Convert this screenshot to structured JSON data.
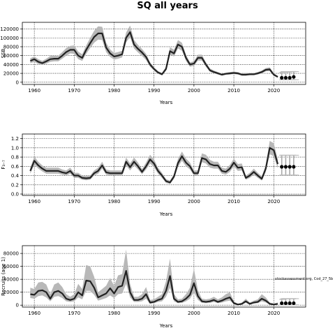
{
  "figure": {
    "title": "SQ all years",
    "credit": "stockassessment.org, Cod_27_5b"
  },
  "colors": {
    "line": "#222222",
    "band": "#b8b8b8",
    "proj_band": "#bcbcbc",
    "grid": "#000000"
  },
  "chart_data": [
    {
      "type": "line",
      "ylabel": "SSB",
      "xlabel": "Years",
      "xlim": [
        1957,
        2028
      ],
      "ylim": [
        -5000,
        135000
      ],
      "xticks": [
        1960,
        1970,
        1980,
        1990,
        2000,
        2010,
        2020
      ],
      "yticks": [
        0,
        20000,
        40000,
        60000,
        80000,
        100000,
        120000
      ],
      "grid": true,
      "series": [
        {
          "x": [
            1959,
            1960,
            1961,
            1962,
            1963,
            1964,
            1965,
            1966,
            1967,
            1968,
            1969,
            1970,
            1971,
            1972,
            1973,
            1974,
            1975,
            1976,
            1977,
            1978,
            1979,
            1980,
            1981,
            1982,
            1983,
            1984,
            1985,
            1986,
            1987,
            1988,
            1989,
            1990,
            1991,
            1992,
            1993,
            1994,
            1995,
            1996,
            1997,
            1998,
            1999,
            2000,
            2001,
            2002,
            2003,
            2004,
            2005,
            2006,
            2007,
            2008,
            2009,
            2010,
            2011,
            2012,
            2013,
            2014,
            2015,
            2016,
            2017,
            2018,
            2019,
            2020,
            2021
          ],
          "y": [
            48000,
            52000,
            46000,
            43000,
            47000,
            52000,
            53000,
            53000,
            60000,
            68000,
            73000,
            73000,
            60000,
            55000,
            73000,
            88000,
            102000,
            110000,
            110000,
            78000,
            65000,
            58000,
            60000,
            63000,
            100000,
            113000,
            85000,
            75000,
            67000,
            57000,
            40000,
            30000,
            22000,
            18000,
            30000,
            70000,
            65000,
            85000,
            80000,
            55000,
            40000,
            42000,
            55000,
            55000,
            40000,
            27000,
            23000,
            20000,
            17000,
            19000,
            20000,
            21000,
            20000,
            17000,
            17000,
            18000,
            18000,
            20000,
            23000,
            28000,
            29000,
            17000,
            12000
          ],
          "lower": [
            43000,
            46000,
            41000,
            39000,
            42000,
            46000,
            47000,
            47000,
            53000,
            60000,
            65000,
            64000,
            52000,
            48000,
            64000,
            77000,
            89000,
            96000,
            95000,
            68000,
            57000,
            51000,
            53000,
            56000,
            90000,
            102000,
            76000,
            67000,
            59000,
            50000,
            35000,
            26000,
            19000,
            15500,
            26000,
            62000,
            58000,
            76000,
            71000,
            48000,
            35000,
            37000,
            49000,
            49000,
            35000,
            23500,
            20000,
            17500,
            14800,
            16700,
            17500,
            18500,
            17500,
            14800,
            14800,
            15700,
            15700,
            17500,
            20000,
            24500,
            25000,
            14600,
            10200
          ],
          "upper": [
            54000,
            58000,
            52000,
            48000,
            53000,
            59000,
            60000,
            60000,
            68000,
            77000,
            82000,
            83000,
            69000,
            63000,
            83000,
            100000,
            116000,
            126000,
            125000,
            89000,
            74000,
            66000,
            68000,
            71000,
            112000,
            128000,
            95000,
            84000,
            75000,
            64000,
            45000,
            34000,
            25000,
            21000,
            35000,
            79000,
            73000,
            95000,
            89000,
            62000,
            45000,
            47000,
            62000,
            62000,
            45000,
            31000,
            26500,
            23000,
            19500,
            21500,
            23000,
            24000,
            23000,
            19700,
            19700,
            20700,
            20700,
            23000,
            26500,
            32000,
            33500,
            20000,
            14500
          ]
        }
      ],
      "projection": {
        "x": [
          2022,
          2023,
          2024,
          2025
        ],
        "y": [
          10000,
          10000,
          10000,
          12000
        ],
        "lower": [
          5500,
          5500,
          5500,
          5500
        ],
        "upper": [
          22000,
          22000,
          23000,
          24000
        ]
      }
    },
    {
      "type": "line",
      "ylabel": "F₃₋₇",
      "xlabel": "Years",
      "xlim": [
        1957,
        2028
      ],
      "ylim": [
        -0.03,
        1.3
      ],
      "xticks": [
        1960,
        1970,
        1980,
        1990,
        2000,
        2010,
        2020
      ],
      "yticks": [
        0.0,
        0.2,
        0.4,
        0.6,
        0.8,
        1.0,
        1.2
      ],
      "ytick_labels": [
        "0.0",
        "0.2",
        "0.4",
        "0.6",
        "0.8",
        "1.0",
        "1.2"
      ],
      "grid": true,
      "series": [
        {
          "x": [
            1959,
            1960,
            1961,
            1962,
            1963,
            1964,
            1965,
            1966,
            1967,
            1968,
            1969,
            1970,
            1971,
            1972,
            1973,
            1974,
            1975,
            1976,
            1977,
            1978,
            1979,
            1980,
            1981,
            1982,
            1983,
            1984,
            1985,
            1986,
            1987,
            1988,
            1989,
            1990,
            1991,
            1992,
            1993,
            1994,
            1995,
            1996,
            1997,
            1998,
            1999,
            2000,
            2001,
            2002,
            2003,
            2004,
            2005,
            2006,
            2007,
            2008,
            2009,
            2010,
            2011,
            2012,
            2013,
            2014,
            2015,
            2016,
            2017,
            2018,
            2019,
            2020,
            2021
          ],
          "y": [
            0.5,
            0.72,
            0.62,
            0.55,
            0.5,
            0.5,
            0.5,
            0.5,
            0.47,
            0.45,
            0.5,
            0.4,
            0.4,
            0.35,
            0.34,
            0.35,
            0.45,
            0.5,
            0.62,
            0.47,
            0.45,
            0.45,
            0.45,
            0.45,
            0.7,
            0.58,
            0.7,
            0.6,
            0.48,
            0.6,
            0.75,
            0.66,
            0.5,
            0.4,
            0.28,
            0.25,
            0.38,
            0.67,
            0.82,
            0.68,
            0.6,
            0.45,
            0.45,
            0.78,
            0.75,
            0.65,
            0.62,
            0.62,
            0.5,
            0.48,
            0.55,
            0.68,
            0.57,
            0.58,
            0.35,
            0.4,
            0.48,
            0.4,
            0.33,
            0.55,
            1.0,
            0.95,
            0.65
          ],
          "lower": [
            0.44,
            0.64,
            0.55,
            0.49,
            0.44,
            0.44,
            0.44,
            0.44,
            0.42,
            0.4,
            0.44,
            0.35,
            0.35,
            0.31,
            0.3,
            0.31,
            0.4,
            0.44,
            0.55,
            0.42,
            0.4,
            0.4,
            0.4,
            0.4,
            0.62,
            0.51,
            0.62,
            0.53,
            0.43,
            0.53,
            0.66,
            0.58,
            0.44,
            0.35,
            0.24,
            0.22,
            0.33,
            0.59,
            0.72,
            0.6,
            0.53,
            0.4,
            0.4,
            0.69,
            0.66,
            0.57,
            0.55,
            0.55,
            0.44,
            0.42,
            0.48,
            0.6,
            0.5,
            0.51,
            0.31,
            0.35,
            0.42,
            0.35,
            0.29,
            0.48,
            0.86,
            0.82,
            0.56
          ],
          "upper": [
            0.57,
            0.81,
            0.7,
            0.62,
            0.57,
            0.57,
            0.57,
            0.57,
            0.53,
            0.51,
            0.57,
            0.46,
            0.46,
            0.4,
            0.39,
            0.4,
            0.51,
            0.57,
            0.7,
            0.53,
            0.51,
            0.51,
            0.51,
            0.51,
            0.79,
            0.66,
            0.79,
            0.68,
            0.54,
            0.68,
            0.85,
            0.75,
            0.57,
            0.46,
            0.32,
            0.29,
            0.43,
            0.76,
            0.92,
            0.77,
            0.68,
            0.51,
            0.51,
            0.88,
            0.85,
            0.74,
            0.7,
            0.7,
            0.57,
            0.55,
            0.63,
            0.77,
            0.65,
            0.66,
            0.4,
            0.46,
            0.55,
            0.46,
            0.38,
            0.63,
            1.15,
            1.1,
            0.75
          ]
        }
      ],
      "projection": {
        "x": [
          2022,
          2023,
          2024,
          2025
        ],
        "y": [
          0.59,
          0.59,
          0.59,
          0.59
        ],
        "lower": [
          0.41,
          0.41,
          0.41,
          0.41
        ],
        "upper": [
          0.84,
          0.84,
          0.84,
          0.84
        ]
      }
    },
    {
      "type": "line",
      "ylabel": "Recruits (age 1)",
      "xlabel": "Years",
      "xlim": [
        1957,
        2028
      ],
      "ylim": [
        -3000,
        92000
      ],
      "xticks": [
        1960,
        1970,
        1980,
        1990,
        2000,
        2010,
        2020
      ],
      "yticks": [
        0,
        20000,
        40000,
        60000,
        80000
      ],
      "grid": true,
      "series": [
        {
          "x": [
            1959,
            1960,
            1961,
            1962,
            1963,
            1964,
            1965,
            1966,
            1967,
            1968,
            1969,
            1970,
            1971,
            1972,
            1973,
            1974,
            1975,
            1976,
            1977,
            1978,
            1979,
            1980,
            1981,
            1982,
            1983,
            1984,
            1985,
            1986,
            1987,
            1988,
            1989,
            1990,
            1991,
            1992,
            1993,
            1994,
            1995,
            1996,
            1997,
            1998,
            1999,
            2000,
            2001,
            2002,
            2003,
            2004,
            2005,
            2006,
            2007,
            2008,
            2009,
            2010,
            2011,
            2012,
            2013,
            2014,
            2015,
            2016,
            2017,
            2018,
            2019,
            2020,
            2021
          ],
          "y": [
            17000,
            16000,
            22000,
            23000,
            20000,
            10000,
            20000,
            22000,
            18000,
            10000,
            8000,
            10000,
            20000,
            15000,
            38000,
            37000,
            27000,
            12000,
            15000,
            18000,
            26000,
            18000,
            28000,
            30000,
            53000,
            20000,
            8000,
            8000,
            10000,
            17000,
            4000,
            5000,
            8000,
            10000,
            22000,
            45000,
            10000,
            5000,
            6000,
            10000,
            16000,
            34000,
            14000,
            6000,
            5000,
            6000,
            8000,
            5000,
            7000,
            10000,
            12000,
            3000,
            1000,
            2000,
            6000,
            2000,
            4000,
            5000,
            10000,
            7000,
            2000,
            1000,
            2000
          ],
          "lower": [
            11000,
            10000,
            14000,
            15000,
            12000,
            6000,
            13000,
            14000,
            11000,
            6000,
            5000,
            6000,
            12000,
            9000,
            22000,
            22000,
            16000,
            7000,
            9000,
            11000,
            15000,
            11000,
            17000,
            18000,
            33000,
            12000,
            5000,
            5000,
            6000,
            10000,
            2000,
            3000,
            5000,
            6000,
            13000,
            27000,
            6000,
            3000,
            3500,
            6000,
            10000,
            20000,
            8000,
            3500,
            3000,
            3500,
            5000,
            3000,
            4000,
            6000,
            7000,
            1500,
            500,
            1000,
            3500,
            1000,
            2500,
            3000,
            6000,
            4000,
            1000,
            500,
            1000
          ],
          "upper": [
            27000,
            25000,
            35000,
            36000,
            32000,
            17000,
            32000,
            35000,
            28000,
            17000,
            13000,
            17000,
            33000,
            25000,
            62000,
            60000,
            44000,
            20000,
            25000,
            30000,
            42000,
            30000,
            46000,
            48000,
            86000,
            33000,
            13000,
            13000,
            17000,
            28000,
            8000,
            9000,
            13000,
            17000,
            37000,
            72000,
            17000,
            9000,
            10000,
            17000,
            27000,
            56000,
            23000,
            10000,
            9000,
            10000,
            13000,
            9000,
            12000,
            17000,
            20000,
            6000,
            2000,
            4000,
            10000,
            4000,
            7000,
            9000,
            17000,
            12000,
            4000,
            2500,
            4000
          ]
        }
      ],
      "projection": {
        "x": [
          2022,
          2023,
          2024,
          2025
        ],
        "y": [
          3000,
          3000,
          3000,
          3000
        ],
        "lower": [
          500,
          500,
          500,
          500
        ],
        "upper": [
          9000,
          10000,
          10000,
          10000
        ]
      }
    }
  ]
}
